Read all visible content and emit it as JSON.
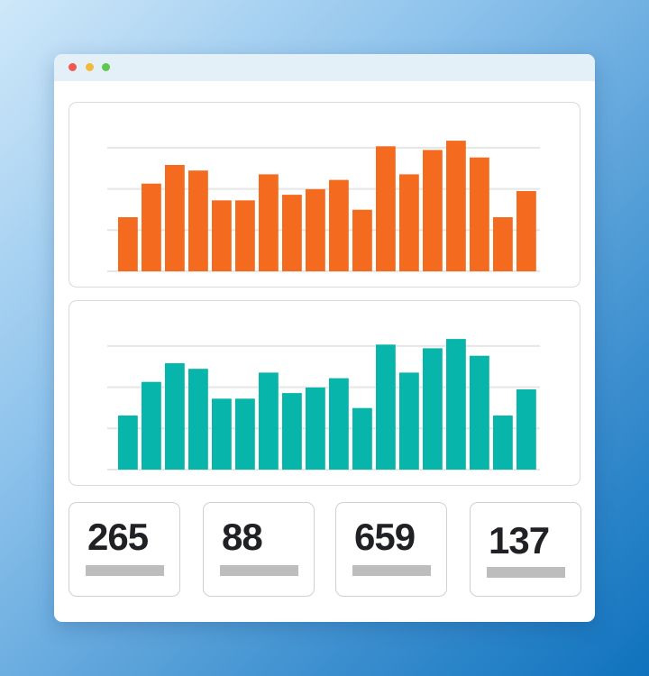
{
  "window": {
    "controls": [
      "close",
      "minimize",
      "maximize"
    ]
  },
  "chart_data": [
    {
      "type": "bar",
      "color": "#f46a1e",
      "grid": true,
      "values": [
        29,
        47,
        57,
        54,
        38,
        38,
        52,
        41,
        44,
        49,
        33,
        67,
        52,
        65,
        70,
        61,
        29,
        43
      ]
    },
    {
      "type": "bar",
      "color": "#07b5aa",
      "grid": true,
      "values": [
        29,
        47,
        57,
        54,
        38,
        38,
        52,
        41,
        44,
        49,
        33,
        67,
        52,
        65,
        70,
        61,
        29,
        43
      ]
    }
  ],
  "stats": [
    {
      "value": "265"
    },
    {
      "value": "88"
    },
    {
      "value": "659"
    },
    {
      "value": "137"
    }
  ]
}
